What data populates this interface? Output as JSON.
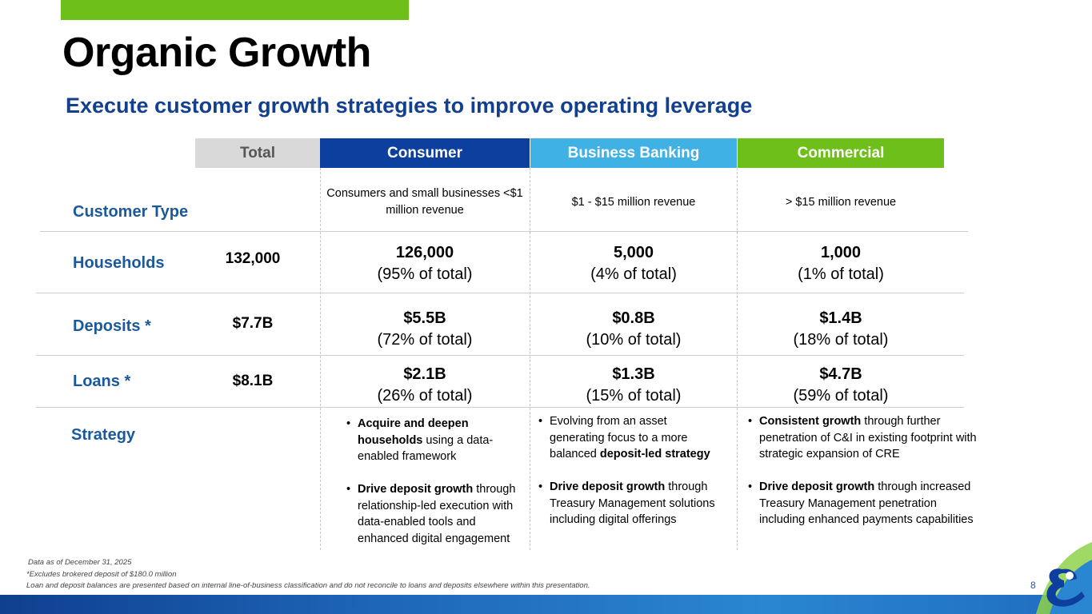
{
  "title": "Organic Growth",
  "subtitle": "Execute customer growth strategies to improve operating leverage",
  "columns": {
    "total": "Total",
    "consumer": "Consumer",
    "business": "Business Banking",
    "commercial": "Commercial"
  },
  "rows": {
    "customer_type": {
      "label": "Customer Type",
      "consumer": "Consumers and small businesses <$1 million revenue",
      "business": "$1 - $15 million revenue",
      "commercial": "> $15 million revenue"
    },
    "households": {
      "label": "Households",
      "total": "132,000",
      "consumer": {
        "value": "126,000",
        "pct": "(95% of total)"
      },
      "business": {
        "value": "5,000",
        "pct": "(4% of total)"
      },
      "commercial": {
        "value": "1,000",
        "pct": "(1% of total)"
      }
    },
    "deposits": {
      "label": "Deposits *",
      "total": "$7.7B",
      "consumer": {
        "value": "$5.5B",
        "pct": "(72% of total)"
      },
      "business": {
        "value": "$0.8B",
        "pct": "(10% of total)"
      },
      "commercial": {
        "value": "$1.4B",
        "pct": "(18% of total)"
      }
    },
    "loans": {
      "label": "Loans *",
      "total": "$8.1B",
      "consumer": {
        "value": "$2.1B",
        "pct": "(26% of total)"
      },
      "business": {
        "value": "$1.3B",
        "pct": "(15% of total)"
      },
      "commercial": {
        "value": "$4.7B",
        "pct": "(59% of total)"
      }
    },
    "strategy": {
      "label": "Strategy",
      "consumer": [
        {
          "bold": "Acquire and deepen households",
          "rest": " using a data-enabled framework"
        },
        {
          "bold": "Drive deposit growth",
          "rest": " through relationship-led execution with data-enabled tools and enhanced digital engagement"
        }
      ],
      "business": [
        {
          "pre": "Evolving from an asset generating focus to a more balanced ",
          "bold": "deposit-led strategy",
          "rest": ""
        },
        {
          "bold": "Drive deposit growth",
          "rest": " through Treasury Management solutions including digital offerings"
        }
      ],
      "commercial": [
        {
          "bold": "Consistent growth",
          "rest": " through further penetration of C&I in existing footprint with strategic expansion of CRE"
        },
        {
          "bold": "Drive deposit growth",
          "rest": " through increased Treasury Management penetration including enhanced payments capabilities"
        }
      ]
    }
  },
  "footnotes": {
    "asof": "Data as of December 31, 2025",
    "brokered": "*Excludes brokered deposit of $180.0 million",
    "classification": "Loan and deposit balances are presented based on internal line-of-business classification and do not reconcile to loans and deposits elsewhere within this presentation."
  },
  "page_number": "8",
  "colors": {
    "accent_green": "#6fbf1a",
    "consumer_blue": "#0d3f9e",
    "business_blue": "#40b1e5",
    "label_blue": "#1a5a9c",
    "subtitle_blue": "#12408f"
  }
}
